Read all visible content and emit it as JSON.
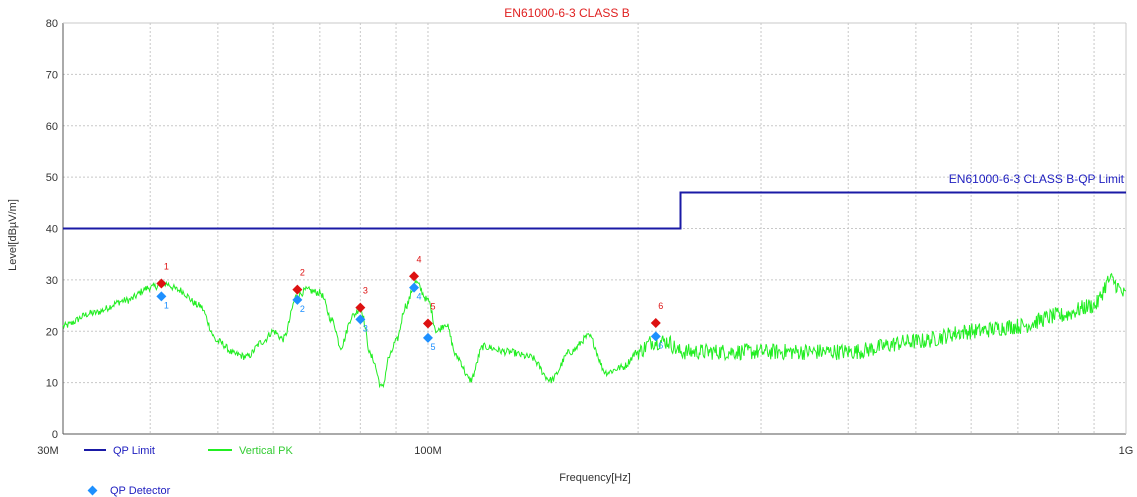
{
  "chart_data": {
    "type": "line",
    "title": "EN61000-6-3 CLASS B",
    "xlabel": "Frequency[Hz]",
    "ylabel": "Level[dBµV/m]",
    "xscale": "log",
    "xlim": [
      30000000,
      1000000000
    ],
    "ylim": [
      0,
      80
    ],
    "yticks": [
      0,
      10,
      20,
      30,
      40,
      50,
      60,
      70,
      80
    ],
    "xtick_labels": [
      {
        "value": 30000000,
        "label": "30M"
      },
      {
        "value": 100000000,
        "label": "100M"
      },
      {
        "value": 1000000000,
        "label": "1G"
      }
    ],
    "grid": true,
    "colors": {
      "title": "#e02020",
      "limit": "#1a1aa6",
      "pk": "#22ee22",
      "qp": "#1e90ff",
      "peak_marker": "#dd1111",
      "limit_label": "#2020c0"
    },
    "limit_line": {
      "name": "QP Limit",
      "label": "EN61000-6-3 CLASS B-QP Limit",
      "points": [
        [
          30000000,
          40
        ],
        [
          230000000,
          40
        ],
        [
          230000000,
          47
        ],
        [
          1000000000,
          47
        ]
      ]
    },
    "pk_trace": {
      "name": "Vertical PK",
      "anchors": [
        [
          30000000,
          21
        ],
        [
          33000000,
          23.5
        ],
        [
          37000000,
          26
        ],
        [
          40000000,
          28.5
        ],
        [
          42000000,
          29.3
        ],
        [
          44000000,
          28
        ],
        [
          47000000,
          25
        ],
        [
          50000000,
          18
        ],
        [
          53000000,
          15.5
        ],
        [
          55000000,
          15
        ],
        [
          58000000,
          18
        ],
        [
          60000000,
          20
        ],
        [
          62000000,
          18.5
        ],
        [
          65000000,
          27
        ],
        [
          67000000,
          28
        ],
        [
          70000000,
          27.5
        ],
        [
          73000000,
          22
        ],
        [
          75000000,
          17
        ],
        [
          78000000,
          23
        ],
        [
          80000000,
          24.5
        ],
        [
          83000000,
          15
        ],
        [
          86000000,
          9
        ],
        [
          88000000,
          15
        ],
        [
          90000000,
          18
        ],
        [
          93000000,
          25
        ],
        [
          96000000,
          29.5
        ],
        [
          100000000,
          26
        ],
        [
          103000000,
          20
        ],
        [
          106000000,
          21.5
        ],
        [
          110000000,
          15
        ],
        [
          115000000,
          10.5
        ],
        [
          120000000,
          17
        ],
        [
          130000000,
          16
        ],
        [
          140000000,
          15
        ],
        [
          150000000,
          10.5
        ],
        [
          160000000,
          16
        ],
        [
          170000000,
          19
        ],
        [
          180000000,
          12
        ],
        [
          190000000,
          13
        ],
        [
          200000000,
          16
        ],
        [
          210000000,
          18
        ],
        [
          220000000,
          18
        ],
        [
          230000000,
          16
        ],
        [
          300000000,
          16
        ],
        [
          400000000,
          16
        ],
        [
          500000000,
          18
        ],
        [
          600000000,
          20
        ],
        [
          700000000,
          21
        ],
        [
          800000000,
          23
        ],
        [
          900000000,
          25
        ],
        [
          950000000,
          30
        ],
        [
          1000000000,
          27
        ]
      ]
    },
    "peaks": [
      {
        "id": "1",
        "freq": 41500000,
        "pk": 29.3,
        "qp": 26.8
      },
      {
        "id": "2",
        "freq": 65000000,
        "pk": 28.1,
        "qp": 26.1
      },
      {
        "id": "3",
        "freq": 80000000,
        "pk": 24.6,
        "qp": 22.3
      },
      {
        "id": "4",
        "freq": 95500000,
        "pk": 30.7,
        "qp": 28.5
      },
      {
        "id": "5",
        "freq": 100000000,
        "pk": 21.5,
        "qp": 18.7
      },
      {
        "id": "6",
        "freq": 212000000,
        "pk": 21.6,
        "qp": 19.0
      }
    ],
    "legend": [
      {
        "key": "limit",
        "label": "QP Limit"
      },
      {
        "key": "pk",
        "label": "Vertical PK"
      },
      {
        "key": "qp",
        "label": "QP Detector"
      }
    ]
  }
}
